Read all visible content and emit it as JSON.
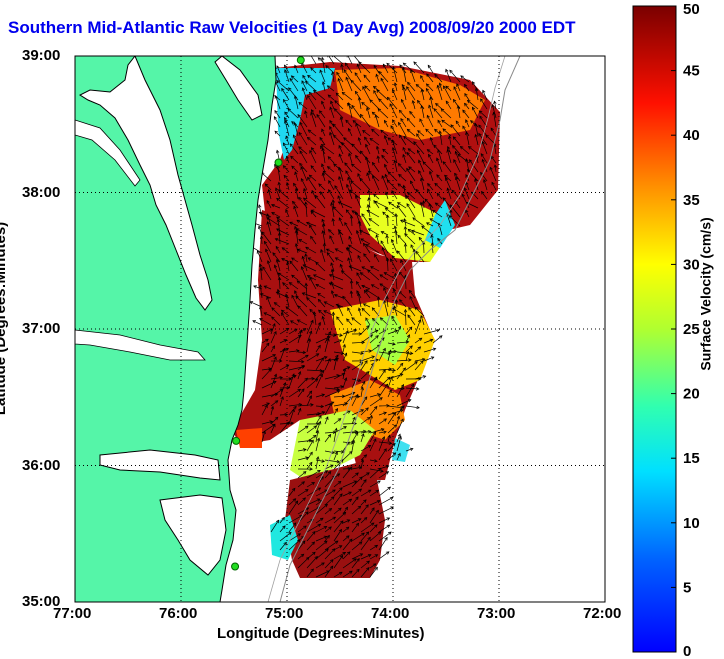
{
  "title": "Southern Mid-Atlantic Raw Velocities (1 Day Avg) 2008/09/20 2000 EDT",
  "map": {
    "xlabel": "Longitude (Degrees:Minutes)",
    "ylabel": "Latitude (Degrees:Minutes)",
    "x_ticks": [
      "77:00",
      "76:00",
      "75:00",
      "74:00",
      "73:00",
      "72:00"
    ],
    "y_ticks": [
      "39:00",
      "38:00",
      "37:00",
      "36:00",
      "35:00"
    ],
    "lon_range": [
      -77,
      -72
    ],
    "lat_range": [
      35,
      39
    ],
    "land_color": "#55f5a8",
    "water_color": "#ffffff",
    "grid": true
  },
  "colorbar": {
    "label": "Surface Velocity (cm/s)",
    "ticks": [
      "0",
      "5",
      "10",
      "15",
      "20",
      "25",
      "30",
      "35",
      "40",
      "45",
      "50"
    ],
    "range": [
      0,
      50
    ],
    "colormap": "jet"
  },
  "chart_data": {
    "type": "heatmap",
    "title": "Southern Mid-Atlantic Raw Velocities (1 Day Avg) 2008/09/20 2000 EDT",
    "xlabel": "Longitude (Degrees:Minutes)",
    "ylabel": "Latitude (Degrees:Minutes)",
    "x_range": [
      -77,
      -72
    ],
    "y_range": [
      35,
      39
    ],
    "value_label": "Surface Velocity (cm/s)",
    "value_range": [
      0,
      50
    ],
    "sample_points": [
      {
        "lon": -74.6,
        "lat": 38.8,
        "speed": 45
      },
      {
        "lon": -74.9,
        "lat": 38.8,
        "speed": 12
      },
      {
        "lon": -74.2,
        "lat": 38.6,
        "speed": 35
      },
      {
        "lon": -73.2,
        "lat": 38.4,
        "speed": 48
      },
      {
        "lon": -74.7,
        "lat": 38.2,
        "speed": 35
      },
      {
        "lon": -74.4,
        "lat": 37.9,
        "speed": 48
      },
      {
        "lon": -74.0,
        "lat": 37.8,
        "speed": 25
      },
      {
        "lon": -73.6,
        "lat": 37.6,
        "speed": 18
      },
      {
        "lon": -74.9,
        "lat": 37.6,
        "speed": 48
      },
      {
        "lon": -74.3,
        "lat": 37.3,
        "speed": 48
      },
      {
        "lon": -73.8,
        "lat": 37.2,
        "speed": 45
      },
      {
        "lon": -74.6,
        "lat": 36.9,
        "speed": 42
      },
      {
        "lon": -74.2,
        "lat": 36.7,
        "speed": 28
      },
      {
        "lon": -73.8,
        "lat": 36.6,
        "speed": 30
      },
      {
        "lon": -75.0,
        "lat": 36.3,
        "speed": 48
      },
      {
        "lon": -74.3,
        "lat": 36.2,
        "speed": 30
      },
      {
        "lon": -74.1,
        "lat": 36.1,
        "speed": 48
      },
      {
        "lon": -73.9,
        "lat": 36.05,
        "speed": 20
      },
      {
        "lon": -74.8,
        "lat": 35.7,
        "speed": 40
      },
      {
        "lon": -74.6,
        "lat": 35.4,
        "speed": 48
      },
      {
        "lon": -74.9,
        "lat": 35.3,
        "speed": 30
      }
    ],
    "stations": [
      {
        "lon": -74.87,
        "lat": 38.97
      },
      {
        "lon": -75.08,
        "lat": 38.22
      },
      {
        "lon": -75.48,
        "lat": 36.18
      },
      {
        "lon": -75.49,
        "lat": 35.26
      }
    ]
  }
}
